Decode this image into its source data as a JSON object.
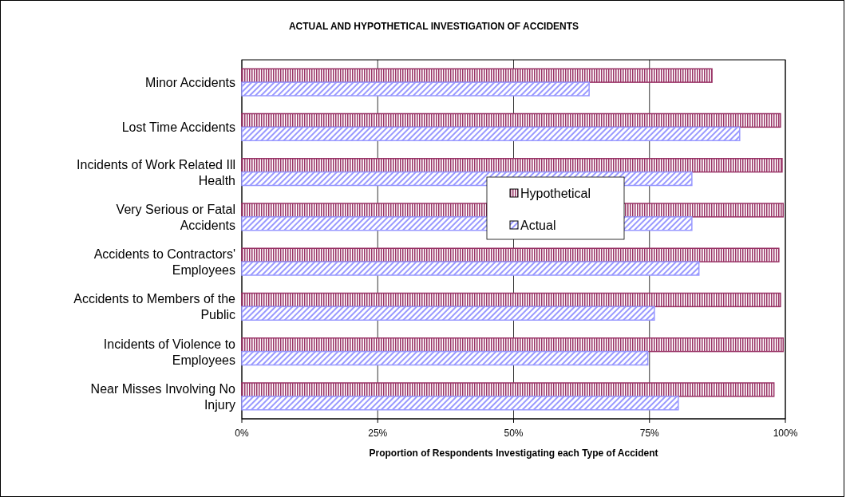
{
  "chart_data": {
    "type": "bar",
    "orientation": "horizontal",
    "title": "ACTUAL AND HYPOTHETICAL INVESTIGATION OF ACCIDENTS",
    "xlabel": "Proportion of Respondents Investigating each Type of Accident",
    "categories": [
      "Minor Accidents",
      "Lost Time Accidents",
      "Incidents of Work Related Ill Health",
      "Very Serious or Fatal Accidents",
      "Accidents to Contractors' Employees",
      "Accidents to Members of the Public",
      "Incidents of Violence to Employees",
      "Near Misses Involving No Injury"
    ],
    "series": [
      {
        "name": "Hypothetical",
        "color": "#993366",
        "values": [
          86.5,
          99.1,
          99.4,
          99.6,
          98.8,
          99.1,
          99.6,
          97.9
        ]
      },
      {
        "name": "Actual",
        "color": "#9999ff",
        "values": [
          63.9,
          91.6,
          82.8,
          82.8,
          84.1,
          75.9,
          74.7,
          80.3
        ]
      }
    ],
    "xlim": [
      0,
      100
    ],
    "xticks": [
      {
        "value": 0,
        "label": "0%"
      },
      {
        "value": 25,
        "label": "25%"
      },
      {
        "value": 50,
        "label": "50%"
      },
      {
        "value": 75,
        "label": "75%"
      },
      {
        "value": 100,
        "label": "100%"
      }
    ],
    "grid": "x",
    "legend": "center"
  }
}
